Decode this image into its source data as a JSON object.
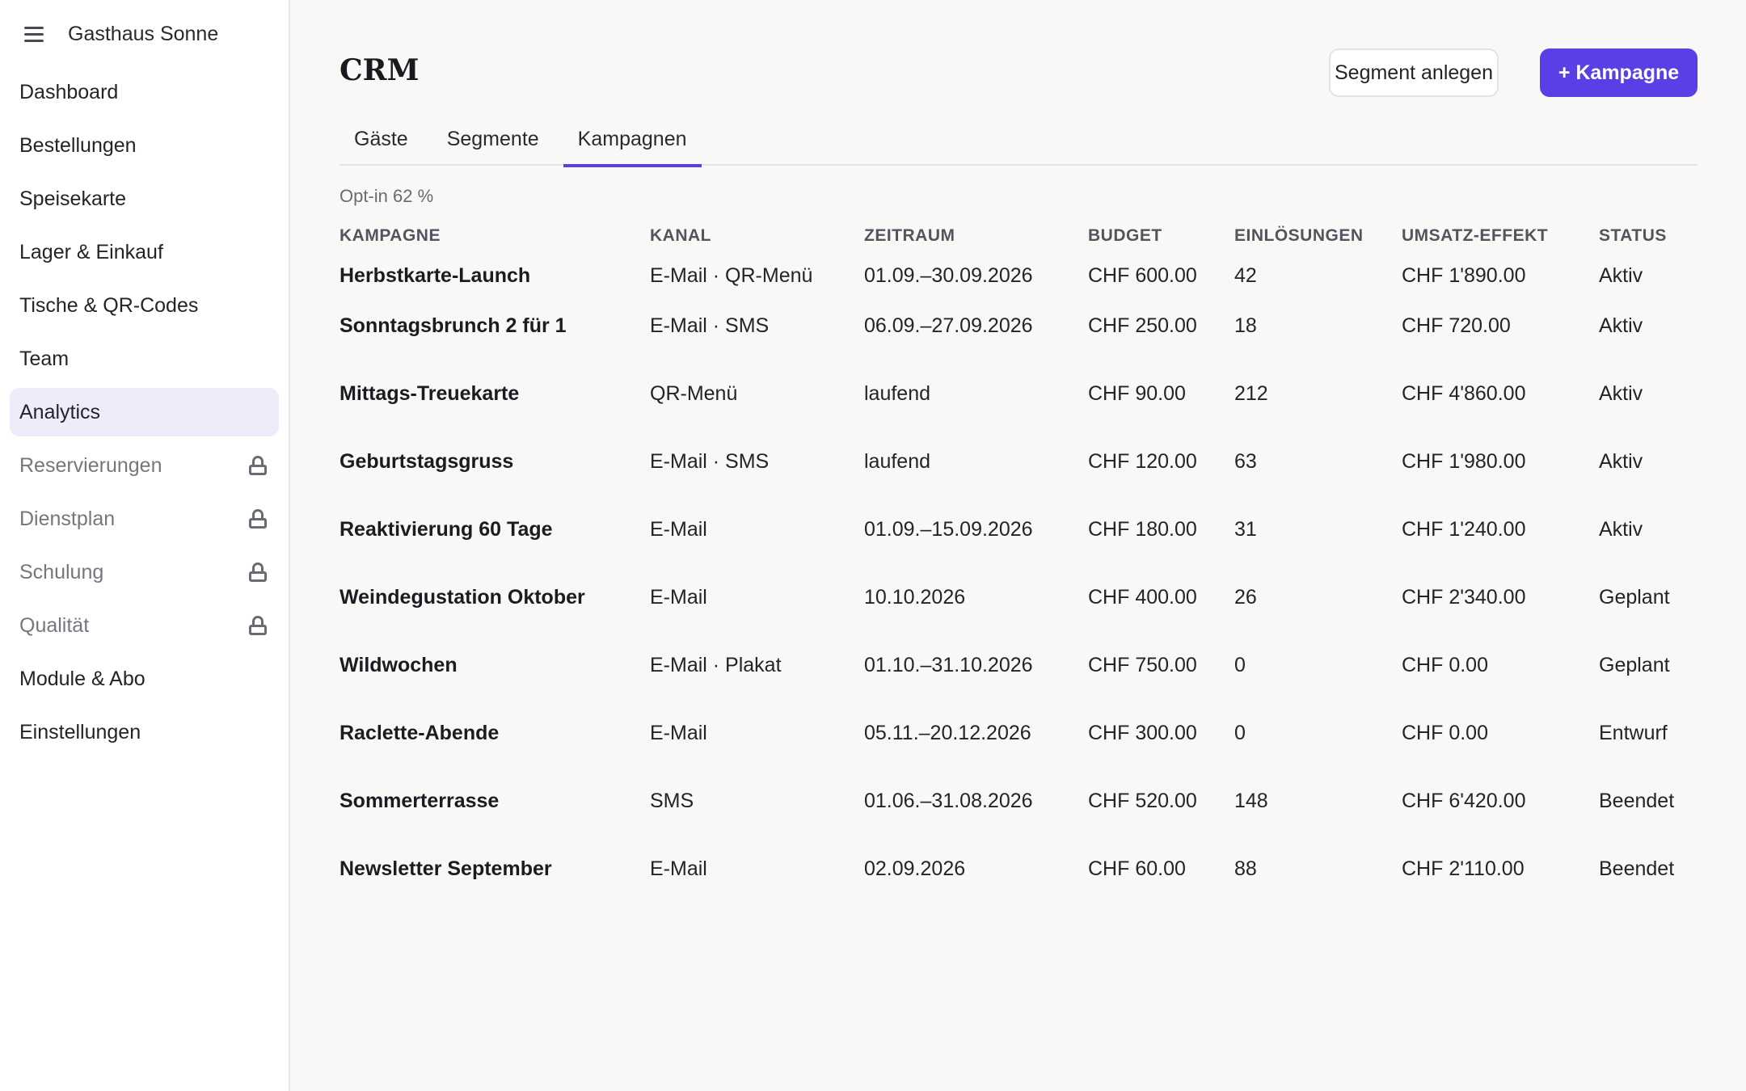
{
  "app": {
    "name": "Gasthaus Sonne",
    "menu_icon": "hamburger-menu-icon"
  },
  "sidebar": {
    "items": [
      {
        "label": "Dashboard",
        "locked": false
      },
      {
        "label": "Bestellungen",
        "locked": false
      },
      {
        "label": "Speisekarte",
        "locked": false
      },
      {
        "label": "Lager & Einkauf",
        "locked": false
      },
      {
        "label": "Tische & QR-Codes",
        "locked": false
      },
      {
        "label": "Team",
        "locked": false
      },
      {
        "label": "Analytics",
        "locked": false,
        "active": true
      },
      {
        "label": "Reservierungen",
        "locked": true,
        "icon": "lock-icon"
      },
      {
        "label": "Dienstplan",
        "locked": true,
        "icon": "lock-icon"
      },
      {
        "label": "Schulung",
        "locked": true,
        "icon": "lock-icon"
      },
      {
        "label": "Qualität",
        "locked": true,
        "icon": "lock-icon"
      },
      {
        "label": "Module & Abo",
        "locked": false
      },
      {
        "label": "Einstellungen",
        "locked": false
      }
    ]
  },
  "header": {
    "title": "CRM",
    "segment_button": "Segment anlegen",
    "campaign_button": "+ Kampagne"
  },
  "tabs": [
    {
      "label": "Gäste",
      "active": false
    },
    {
      "label": "Segmente",
      "active": false
    },
    {
      "label": "Kampagnen",
      "active": true
    }
  ],
  "optin_text": "Opt-in 62 %",
  "table": {
    "columns": [
      "KAMPAGNE",
      "KANAL",
      "ZEITRAUM",
      "BUDGET",
      "EINLÖSUNGEN",
      "UMSATZ-EFFEKT",
      "STATUS"
    ],
    "rows": [
      [
        "Herbstkarte-Launch",
        "E-Mail · QR-Menü",
        "01.09.–30.09.2026",
        "CHF 600.00",
        "42",
        "CHF 1'890.00",
        "Aktiv"
      ],
      [
        "Sonntagsbrunch 2 für 1",
        "E-Mail · SMS",
        "06.09.–27.09.2026",
        "CHF 250.00",
        "18",
        "CHF 720.00",
        "Aktiv"
      ],
      [
        "Mittags-Treuekarte",
        "QR-Menü",
        "laufend",
        "CHF 90.00",
        "212",
        "CHF 4'860.00",
        "Aktiv"
      ],
      [
        "Geburtstagsgruss",
        "E-Mail · SMS",
        "laufend",
        "CHF 120.00",
        "63",
        "CHF 1'980.00",
        "Aktiv"
      ],
      [
        "Reaktivierung 60 Tage",
        "E-Mail",
        "01.09.–15.09.2026",
        "CHF 180.00",
        "31",
        "CHF 1'240.00",
        "Aktiv"
      ],
      [
        "Weindegustation Oktober",
        "E-Mail",
        "10.10.2026",
        "CHF 400.00",
        "26",
        "CHF 2'340.00",
        "Geplant"
      ],
      [
        "Wildwochen",
        "E-Mail · Plakat",
        "01.10.–31.10.2026",
        "CHF 750.00",
        "0",
        "CHF 0.00",
        "Geplant"
      ],
      [
        "Raclette-Abende",
        "E-Mail",
        "05.11.–20.12.2026",
        "CHF 300.00",
        "0",
        "CHF 0.00",
        "Entwurf"
      ],
      [
        "Sommerterrasse",
        "SMS",
        "01.06.–31.08.2026",
        "CHF 520.00",
        "148",
        "CHF 6'420.00",
        "Beendet"
      ],
      [
        "Newsletter September",
        "E-Mail",
        "02.09.2026",
        "CHF 60.00",
        "88",
        "CHF 2'110.00",
        "Beendet"
      ]
    ]
  },
  "colors": {
    "accent": "#5b3fe6",
    "active_nav_bg": "#eeebfb",
    "background": "#f9f8f7"
  }
}
